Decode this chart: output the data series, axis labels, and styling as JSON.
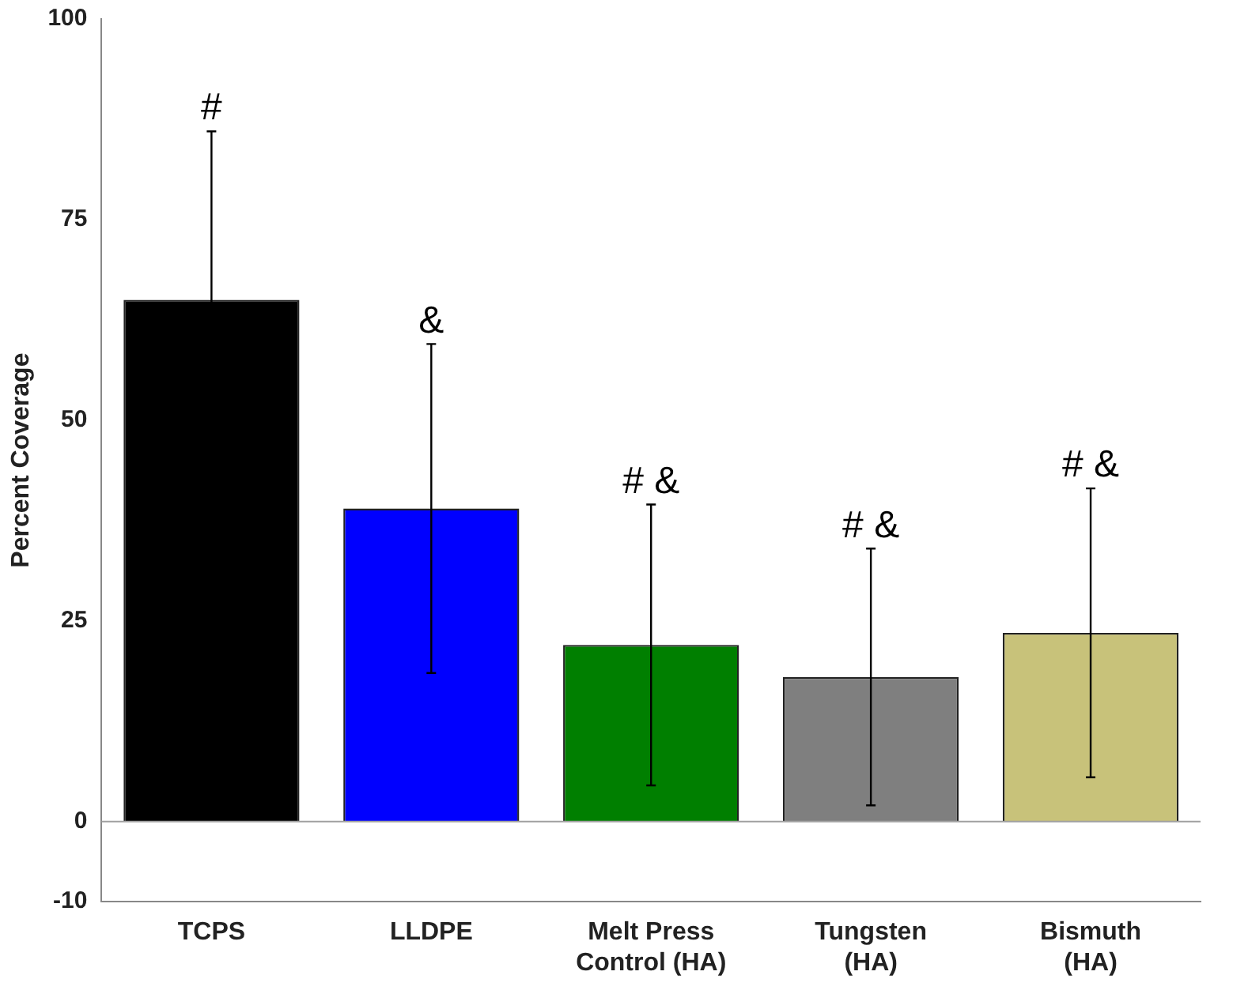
{
  "chart_data": {
    "type": "bar",
    "ylabel": "Percent Coverage",
    "categories": [
      "TCPS",
      "LLDPE",
      "Melt Press\nControl (HA)",
      "Tungsten\n(HA)",
      "Bismuth\n(HA)"
    ],
    "values": [
      65,
      39,
      22,
      18,
      23.5
    ],
    "errors": [
      21,
      20.5,
      17.5,
      16,
      18
    ],
    "colors": [
      "#000000",
      "#0000ff",
      "#007f00",
      "#7f7f7f",
      "#c8c27a"
    ],
    "ylim": [
      -10,
      100
    ],
    "yticks": [
      -10,
      0,
      25,
      50,
      75,
      100
    ],
    "ref_lines": [
      {
        "axis": "y",
        "value": 0,
        "color": "#a0a0a0"
      }
    ],
    "annotations": [
      {
        "text": "#",
        "x": "TCPS",
        "y": 86
      },
      {
        "text": "&",
        "x": "LLDPE",
        "y": 59.5
      },
      {
        "text": "# &",
        "x": "Melt Press\nControl (HA)",
        "y": 39.5
      },
      {
        "text": "# &",
        "x": "Tungsten\n(HA)",
        "y": 34
      },
      {
        "text": "# &",
        "x": "Bismuth\n(HA)",
        "y": 41.5
      }
    ],
    "grid": false,
    "legend": false
  }
}
